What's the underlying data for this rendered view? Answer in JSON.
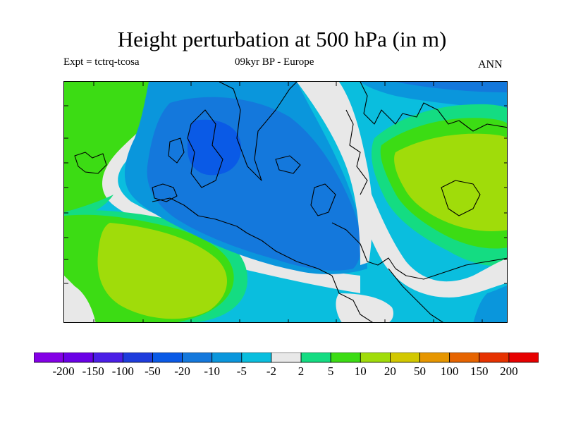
{
  "title": "Height perturbation at 500 hPa (in m)",
  "experiment": "Expt = tctrq-tcosa",
  "period_region": "09kyr BP - Europe",
  "season": "ANN",
  "colorbar": {
    "colors": [
      "#8400e6",
      "#6a00e6",
      "#4b1ee6",
      "#1e3cdc",
      "#0a5ae6",
      "#1478dc",
      "#0a96dc",
      "#0abede",
      "#e8e8e8",
      "#14dc82",
      "#3cdc14",
      "#a0dc0a",
      "#d2c800",
      "#e69600",
      "#e66400",
      "#e63200",
      "#e60000"
    ],
    "labels": [
      "-200",
      "-150",
      "-100",
      "-50",
      "-20",
      "-10",
      "-5",
      "-2",
      "2",
      "5",
      "10",
      "20",
      "50",
      "100",
      "150",
      "200"
    ]
  },
  "map_colors": {
    "gray": "#e8e8e8",
    "cyan": "#0abede",
    "teal": "#14dc82",
    "green": "#3cdc14",
    "yellowgreen": "#a0dc0a",
    "lightblue": "#0a96dc",
    "blue": "#1478dc",
    "darkblue": "#0a5ae6"
  }
}
